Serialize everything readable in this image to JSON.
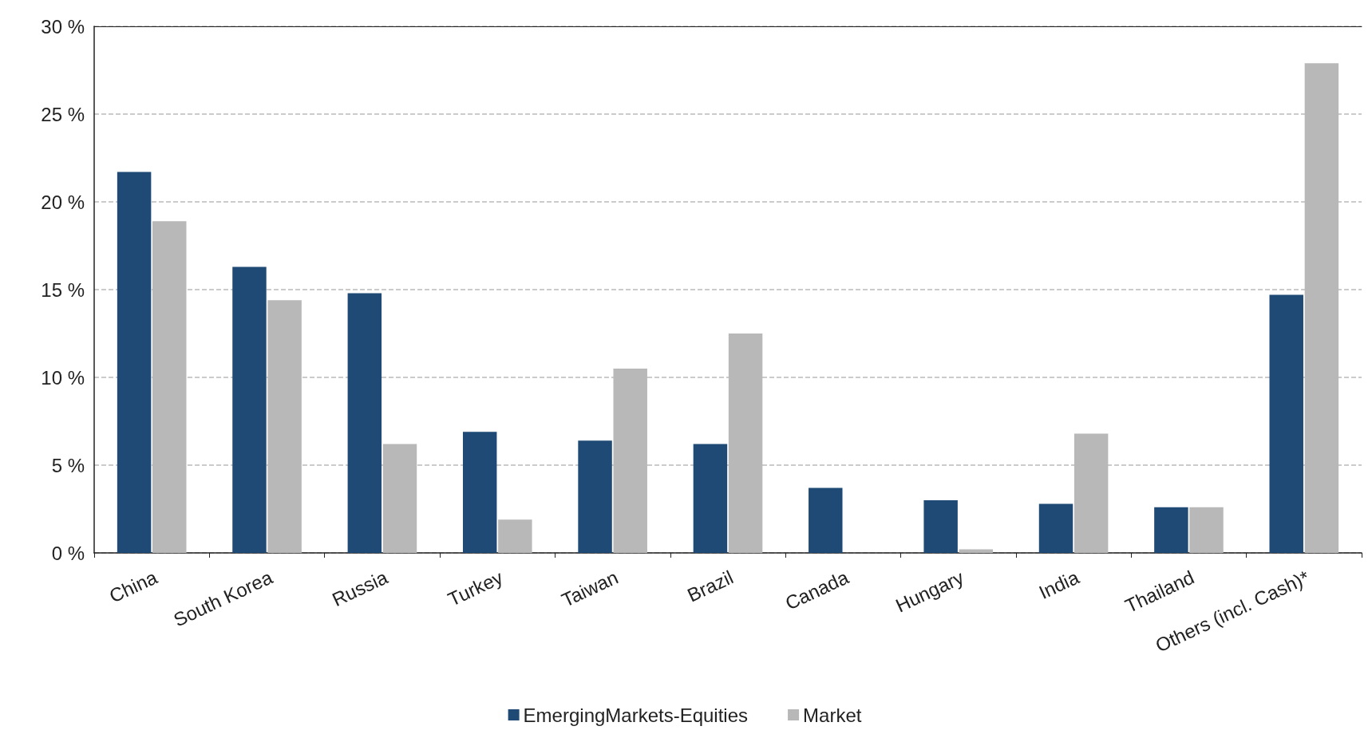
{
  "chart_data": {
    "type": "bar",
    "categories": [
      "China",
      "South Korea",
      "Russia",
      "Turkey",
      "Taiwan",
      "Brazil",
      "Canada",
      "Hungary",
      "India",
      "Thailand",
      "Others (incl. Cash)*"
    ],
    "series": [
      {
        "name": "EmergingMarkets-Equities",
        "color": "#1f4a75",
        "values": [
          21.7,
          16.3,
          14.8,
          6.9,
          6.4,
          6.2,
          3.7,
          3.0,
          2.8,
          2.6,
          14.7
        ]
      },
      {
        "name": "Market",
        "color": "#b8b8b8",
        "values": [
          18.9,
          14.4,
          6.2,
          1.9,
          10.5,
          12.5,
          0,
          0.2,
          6.8,
          2.6,
          27.9
        ]
      }
    ],
    "ylim": [
      0,
      30
    ],
    "yticks": [
      {
        "value": 0,
        "label": "0 %"
      },
      {
        "value": 5,
        "label": "5 %"
      },
      {
        "value": 10,
        "label": "10 %"
      },
      {
        "value": 15,
        "label": "15 %"
      },
      {
        "value": 20,
        "label": "20 %"
      },
      {
        "value": 25,
        "label": "25 %"
      },
      {
        "value": 30,
        "label": "30 %"
      }
    ],
    "grid": "y",
    "legend": "bottom"
  }
}
